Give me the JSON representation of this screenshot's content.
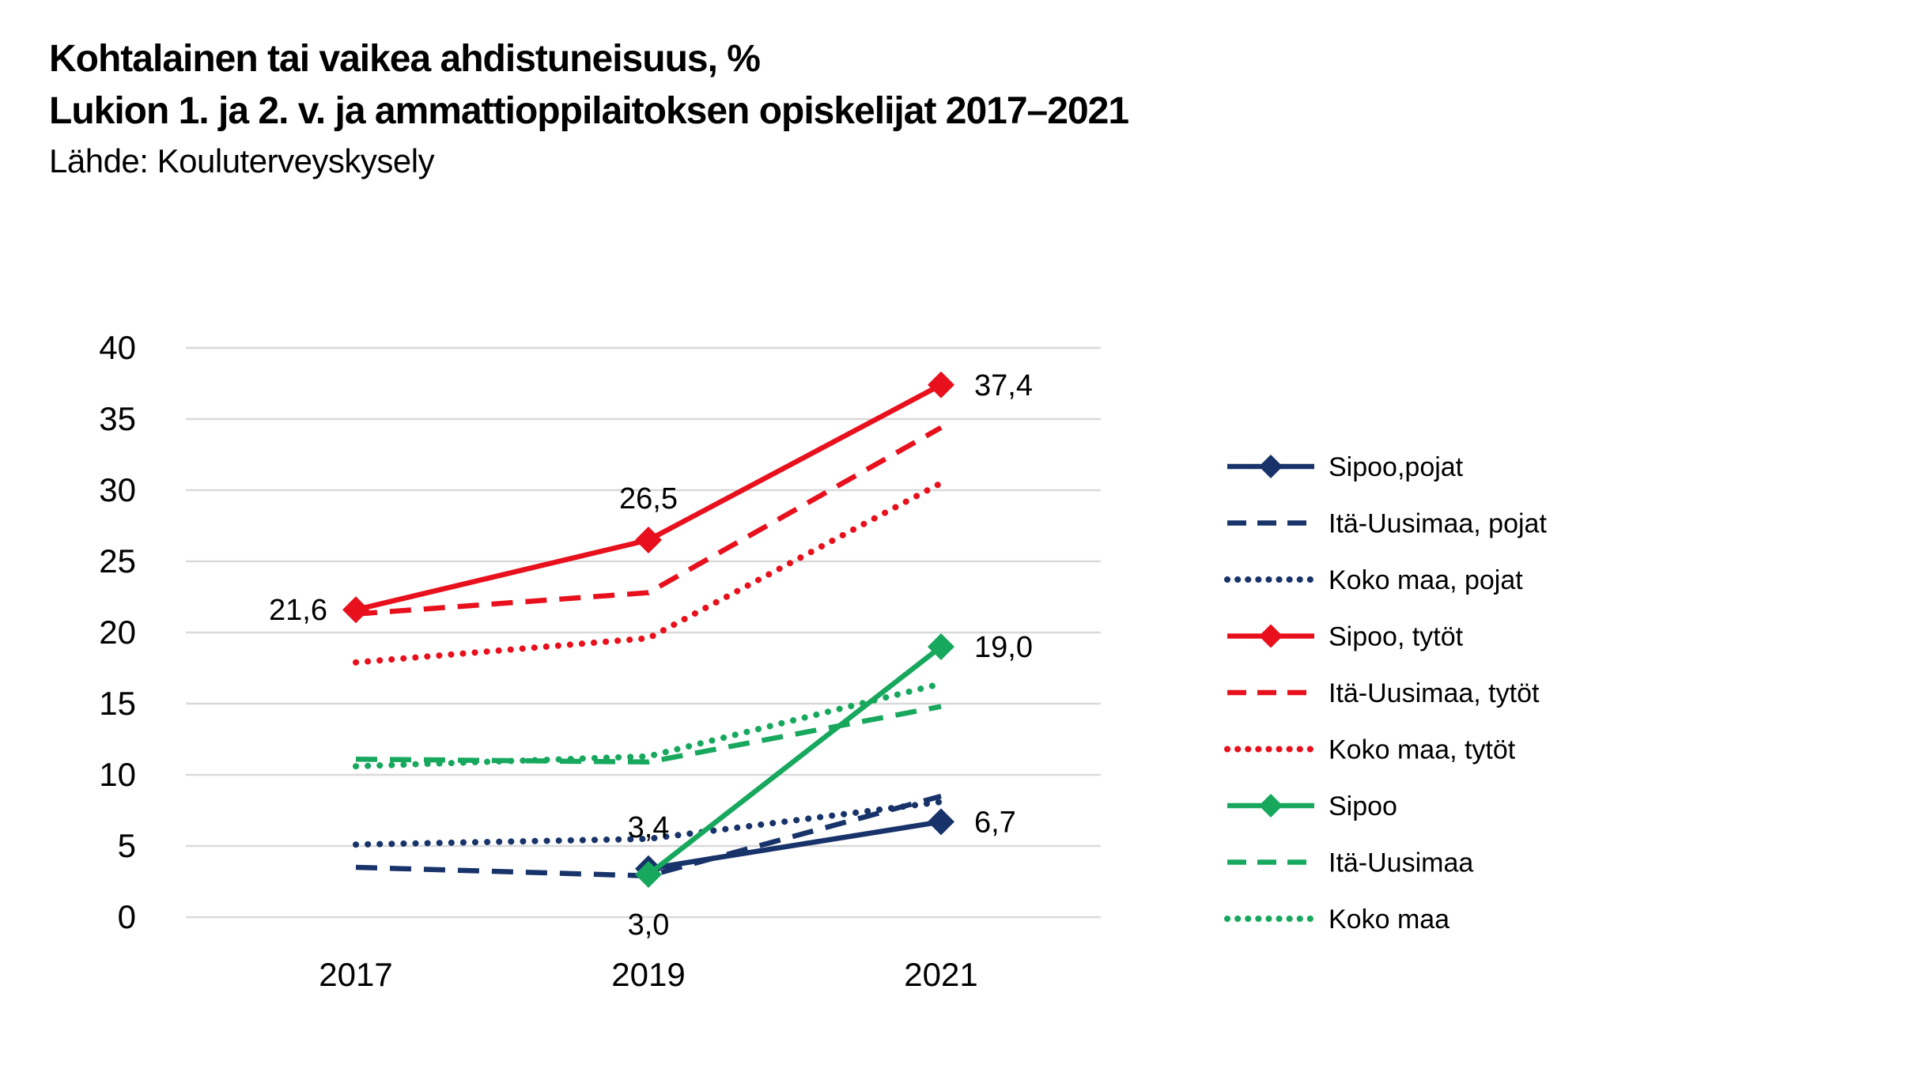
{
  "header": {
    "title_line1": "Kohtalainen tai vaikea ahdistuneisuus, %",
    "title_line2": "Lukion 1. ja 2. v. ja ammattioppilaitoksen opiskelijat 2017–2021",
    "source": "Lähde: Kouluterveyskysely"
  },
  "colors": {
    "navy": "#173369",
    "red": "#e8101c",
    "green": "#17a85e",
    "gridline": "#d9d9d9",
    "text": "#000000",
    "background": "#ffffff"
  },
  "chart_data": {
    "type": "line",
    "title": "Kohtalainen tai vaikea ahdistuneisuus, %",
    "subtitle": "Lukion 1. ja 2. v. ja ammattioppilaitoksen opiskelijat 2017–2021",
    "source": "Lähde: Kouluterveyskysely",
    "x": [
      2017,
      2019,
      2021
    ],
    "x_tick_labels": [
      "2017",
      "2019",
      "2021"
    ],
    "y_ticks": [
      0,
      5,
      10,
      15,
      20,
      25,
      30,
      35,
      40
    ],
    "y_tick_labels": [
      "0",
      "5",
      "10",
      "15",
      "20",
      "25",
      "30",
      "35",
      "40"
    ],
    "ylim": [
      0,
      40
    ],
    "grid": "horizontal",
    "legend_position": "right",
    "series": [
      {
        "name": "Sipoo,pojat",
        "color": "#173369",
        "style": "solid",
        "marker": "diamond",
        "values": [
          null,
          3.4,
          6.7
        ],
        "labels": [
          null,
          "3,4",
          "6,7"
        ],
        "label_pos": [
          null,
          "above",
          "right"
        ]
      },
      {
        "name": "Itä-Uusimaa, pojat",
        "color": "#173369",
        "style": "dashed",
        "marker": "none",
        "values": [
          3.5,
          2.9,
          8.5
        ]
      },
      {
        "name": "Koko maa, pojat",
        "color": "#173369",
        "style": "dotted",
        "marker": "none",
        "values": [
          5.1,
          5.5,
          8.1
        ]
      },
      {
        "name": "Sipoo, tytöt",
        "color": "#e8101c",
        "style": "solid",
        "marker": "diamond",
        "values": [
          21.6,
          26.5,
          37.4
        ],
        "labels": [
          "21,6",
          "26,5",
          "37,4"
        ],
        "label_pos": [
          "left",
          "above",
          "right"
        ]
      },
      {
        "name": "Itä-Uusimaa, tytöt",
        "color": "#e8101c",
        "style": "dashed",
        "marker": "none",
        "values": [
          21.3,
          22.8,
          34.4
        ]
      },
      {
        "name": "Koko maa, tytöt",
        "color": "#e8101c",
        "style": "dotted",
        "marker": "none",
        "values": [
          17.9,
          19.6,
          30.5
        ]
      },
      {
        "name": "Sipoo",
        "color": "#17a85e",
        "style": "solid",
        "marker": "diamond",
        "values": [
          null,
          3.0,
          19.0
        ],
        "labels": [
          null,
          "3,0",
          "19,0"
        ],
        "label_pos": [
          null,
          "below",
          "right"
        ]
      },
      {
        "name": "Itä-Uusimaa",
        "color": "#17a85e",
        "style": "dashed",
        "marker": "none",
        "values": [
          11.1,
          10.9,
          14.8
        ]
      },
      {
        "name": "Koko maa",
        "color": "#17a85e",
        "style": "dotted",
        "marker": "none",
        "values": [
          10.6,
          11.3,
          16.4
        ]
      }
    ]
  }
}
